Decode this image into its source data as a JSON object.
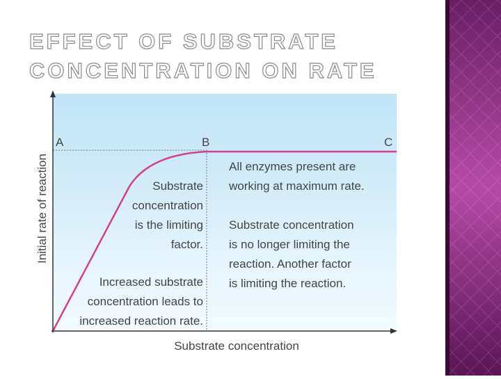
{
  "header": {
    "title": [
      "EFFECT OF SUBSTRATE",
      "CONCENTRATION ON RATE"
    ]
  },
  "diagram": {
    "y_axis_label": "Initial rate of reaction",
    "x_axis_label": "Substrate concentration",
    "points": [
      "A",
      "B",
      "C"
    ],
    "annotations": [
      [
        "Substrate",
        "concentration",
        "is the limiting",
        "factor."
      ],
      [
        "Increased substrate",
        "concentration leads to",
        "increased reaction rate."
      ],
      [
        "All enzymes present are",
        "working at maximum rate."
      ],
      [
        "Substrate concentration",
        "is no longer limiting the",
        "reaction. Another factor",
        "is limiting the reaction."
      ]
    ]
  }
}
